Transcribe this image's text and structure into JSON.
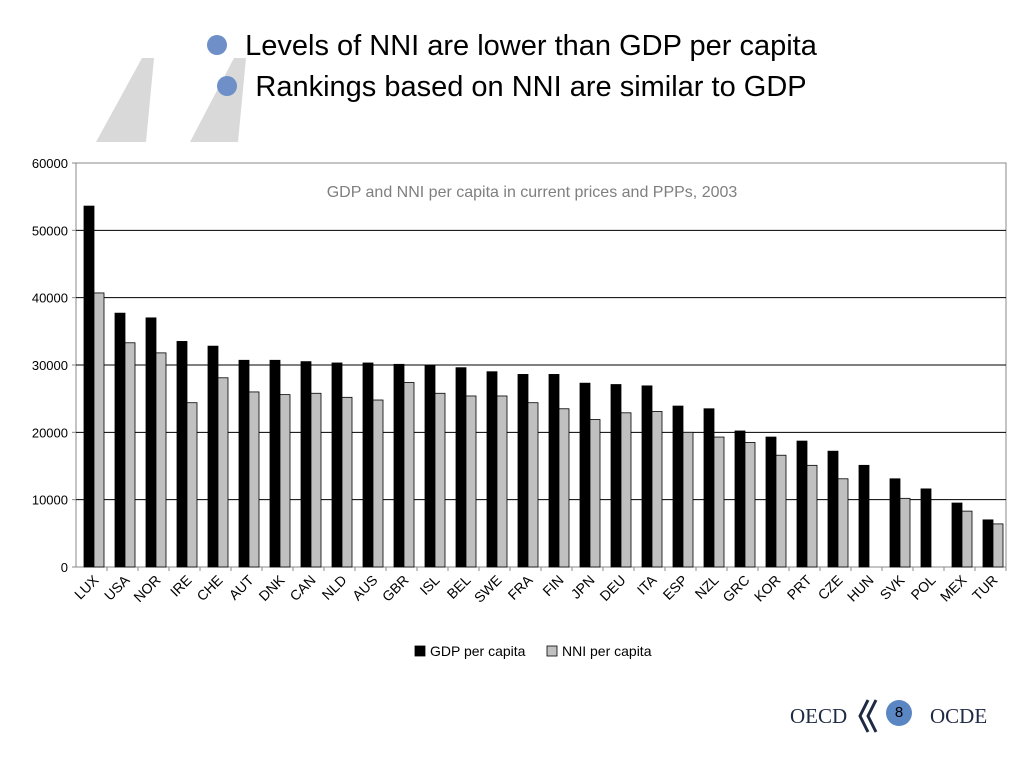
{
  "slide": {
    "bullets": [
      "Levels of NNI are lower than GDP per capita",
      "Rankings based on NNI are similar to GDP"
    ],
    "accent_color": "#6f8fc9",
    "page_number": "8",
    "logo_left": "OECD",
    "logo_right": "OCDE"
  },
  "chart_data": {
    "type": "bar",
    "title": "GDP and NNI per capita in current prices and PPPs, 2003",
    "categories": [
      "LUX",
      "USA",
      "NOR",
      "IRE",
      "CHE",
      "AUT",
      "DNK",
      "CAN",
      "NLD",
      "AUS",
      "GBR",
      "ISL",
      "BEL",
      "SWE",
      "FRA",
      "FIN",
      "JPN",
      "DEU",
      "ITA",
      "ESP",
      "NZL",
      "GRC",
      "KOR",
      "PRT",
      "CZE",
      "HUN",
      "SVK",
      "POL",
      "MEX",
      "TUR"
    ],
    "series": [
      {
        "name": "GDP per capita",
        "color": "#000000",
        "values": [
          53600,
          37700,
          37000,
          33500,
          32800,
          30700,
          30700,
          30500,
          30300,
          30300,
          30100,
          29900,
          29600,
          29000,
          28600,
          28600,
          27300,
          27100,
          26900,
          23900,
          23500,
          20200,
          19300,
          18700,
          17200,
          15100,
          13100,
          11600,
          9500,
          7000
        ]
      },
      {
        "name": "NNI per capita",
        "color": "#c0c0c0",
        "values": [
          40700,
          33300,
          31800,
          24400,
          28100,
          26000,
          25600,
          25800,
          25200,
          24800,
          27400,
          25800,
          25400,
          25400,
          24400,
          23500,
          21900,
          22900,
          23100,
          20000,
          19300,
          18500,
          16600,
          15100,
          13100,
          null,
          10200,
          null,
          8300,
          6400
        ]
      }
    ],
    "ylim": [
      0,
      60000
    ],
    "yticks": [
      0,
      10000,
      20000,
      30000,
      40000,
      50000,
      60000
    ],
    "xlabel": "",
    "ylabel": "",
    "legend_position": "bottom",
    "grid": "horizontal"
  }
}
